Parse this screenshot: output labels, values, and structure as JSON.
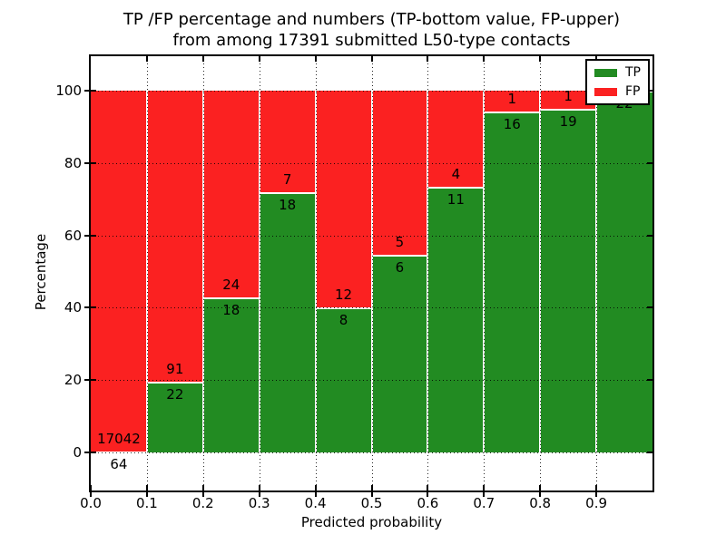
{
  "figure": {
    "title_line1": "TP /FP percentage and numbers (TP-bottom value, FP-upper)",
    "title_line2": "from among 17391 submitted L50-type contacts"
  },
  "chart_data": {
    "type": "bar",
    "stacked": true,
    "title": "TP /FP percentage and numbers (TP-bottom value, FP-upper) from among 17391 submitted L50-type contacts",
    "xlabel": "Predicted probability",
    "ylabel": "Percentage",
    "total_contacts": 17391,
    "bin_edges": [
      0.0,
      0.1,
      0.2,
      0.3,
      0.4,
      0.5,
      0.6,
      0.7,
      0.8,
      0.9,
      1.0
    ],
    "categories": [
      "0.0-0.1",
      "0.1-0.2",
      "0.2-0.3",
      "0.3-0.4",
      "0.4-0.5",
      "0.5-0.6",
      "0.6-0.7",
      "0.7-0.8",
      "0.8-0.9",
      "0.9-1.0"
    ],
    "series": [
      {
        "name": "TP",
        "position": "bottom",
        "color": "#228b22",
        "values": [
          64,
          22,
          18,
          18,
          8,
          6,
          11,
          16,
          19,
          22
        ]
      },
      {
        "name": "FP",
        "position": "top",
        "color": "#fb2121",
        "values": [
          17042,
          91,
          24,
          7,
          12,
          5,
          4,
          1,
          1,
          0
        ]
      }
    ],
    "tp_percentages": [
      0.37,
      19.47,
      42.86,
      72.0,
      40.0,
      54.55,
      73.33,
      94.12,
      95.0,
      100.0
    ],
    "yticks": [
      0,
      20,
      40,
      60,
      80,
      100
    ],
    "xtick_labels": [
      "0.0",
      "0.1",
      "0.2",
      "0.3",
      "0.4",
      "0.5",
      "0.6",
      "0.7",
      "0.8",
      "0.9"
    ],
    "xlim": [
      0.0,
      1.0
    ],
    "ylim_display": [
      -10.5,
      109.5
    ],
    "grid": true,
    "legend": {
      "position": "upper right",
      "entries": [
        "TP",
        "FP"
      ]
    },
    "grid_color": "rgba(0,0,0,0.85)",
    "bar_edge_color": "#ffffff",
    "background_color": "#ffffff"
  }
}
